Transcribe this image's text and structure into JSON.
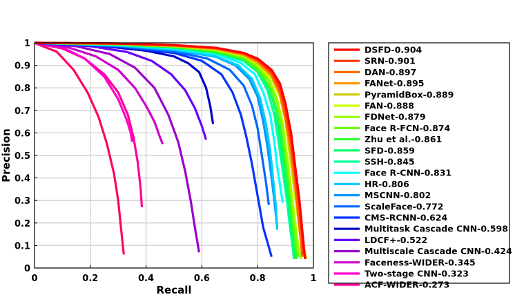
{
  "chart_data": {
    "type": "line",
    "title": "",
    "xlabel": "Recall",
    "ylabel": "Precision",
    "xlim": [
      0,
      1
    ],
    "ylim": [
      0,
      1
    ],
    "grid": true,
    "legend_position": "right",
    "x_ticks": [
      "0",
      "0.2",
      "0.4",
      "0.6",
      "0.8",
      "1"
    ],
    "y_ticks": [
      "0",
      "0.1",
      "0.2",
      "0.3",
      "0.4",
      "0.5",
      "0.6",
      "0.7",
      "0.8",
      "0.9",
      "1"
    ],
    "series": [
      {
        "name": "DSFD-0.904",
        "color": "#ff0000",
        "points": [
          [
            0,
            1
          ],
          [
            0.3,
            0.997
          ],
          [
            0.5,
            0.99
          ],
          [
            0.65,
            0.978
          ],
          [
            0.75,
            0.955
          ],
          [
            0.8,
            0.93
          ],
          [
            0.85,
            0.88
          ],
          [
            0.88,
            0.82
          ],
          [
            0.9,
            0.73
          ],
          [
            0.92,
            0.6
          ],
          [
            0.935,
            0.45
          ],
          [
            0.95,
            0.3
          ],
          [
            0.96,
            0.17
          ],
          [
            0.97,
            0.04
          ]
        ]
      },
      {
        "name": "SRN-0.901",
        "color": "#ff3300",
        "points": [
          [
            0,
            1
          ],
          [
            0.3,
            0.997
          ],
          [
            0.5,
            0.99
          ],
          [
            0.65,
            0.978
          ],
          [
            0.75,
            0.955
          ],
          [
            0.8,
            0.925
          ],
          [
            0.85,
            0.87
          ],
          [
            0.88,
            0.8
          ],
          [
            0.9,
            0.7
          ],
          [
            0.92,
            0.57
          ],
          [
            0.935,
            0.42
          ],
          [
            0.95,
            0.27
          ],
          [
            0.96,
            0.14
          ],
          [
            0.965,
            0.06
          ]
        ]
      },
      {
        "name": "DAN-0.897",
        "color": "#ff6600",
        "points": [
          [
            0,
            1
          ],
          [
            0.3,
            0.996
          ],
          [
            0.5,
            0.988
          ],
          [
            0.65,
            0.975
          ],
          [
            0.75,
            0.95
          ],
          [
            0.8,
            0.92
          ],
          [
            0.85,
            0.86
          ],
          [
            0.88,
            0.78
          ],
          [
            0.9,
            0.67
          ],
          [
            0.92,
            0.53
          ],
          [
            0.935,
            0.38
          ],
          [
            0.945,
            0.25
          ],
          [
            0.955,
            0.12
          ],
          [
            0.96,
            0.05
          ]
        ]
      },
      {
        "name": "FANet-0.895",
        "color": "#ff9900",
        "points": [
          [
            0,
            1
          ],
          [
            0.3,
            0.996
          ],
          [
            0.5,
            0.987
          ],
          [
            0.65,
            0.974
          ],
          [
            0.75,
            0.948
          ],
          [
            0.8,
            0.915
          ],
          [
            0.85,
            0.855
          ],
          [
            0.88,
            0.77
          ],
          [
            0.9,
            0.66
          ],
          [
            0.92,
            0.51
          ],
          [
            0.935,
            0.36
          ],
          [
            0.945,
            0.23
          ],
          [
            0.955,
            0.12
          ],
          [
            0.965,
            0.05
          ]
        ]
      },
      {
        "name": "PyramidBox-0.889",
        "color": "#cccc00",
        "points": [
          [
            0,
            1
          ],
          [
            0.3,
            0.995
          ],
          [
            0.5,
            0.986
          ],
          [
            0.65,
            0.972
          ],
          [
            0.75,
            0.945
          ],
          [
            0.8,
            0.91
          ],
          [
            0.85,
            0.85
          ],
          [
            0.88,
            0.77
          ],
          [
            0.9,
            0.66
          ],
          [
            0.915,
            0.52
          ],
          [
            0.93,
            0.38
          ],
          [
            0.945,
            0.24
          ],
          [
            0.96,
            0.12
          ],
          [
            0.975,
            0.04
          ]
        ]
      },
      {
        "name": "FAN-0.888",
        "color": "#ccff00",
        "points": [
          [
            0,
            1
          ],
          [
            0.3,
            0.995
          ],
          [
            0.5,
            0.986
          ],
          [
            0.65,
            0.97
          ],
          [
            0.75,
            0.943
          ],
          [
            0.8,
            0.905
          ],
          [
            0.85,
            0.84
          ],
          [
            0.88,
            0.76
          ],
          [
            0.9,
            0.65
          ],
          [
            0.915,
            0.5
          ],
          [
            0.93,
            0.36
          ],
          [
            0.945,
            0.22
          ],
          [
            0.955,
            0.12
          ],
          [
            0.965,
            0.05
          ]
        ]
      },
      {
        "name": "FDNet-0.879",
        "color": "#99ff00",
        "points": [
          [
            0,
            1
          ],
          [
            0.3,
            0.995
          ],
          [
            0.5,
            0.985
          ],
          [
            0.65,
            0.968
          ],
          [
            0.75,
            0.94
          ],
          [
            0.8,
            0.9
          ],
          [
            0.84,
            0.84
          ],
          [
            0.87,
            0.75
          ],
          [
            0.89,
            0.64
          ],
          [
            0.905,
            0.5
          ],
          [
            0.92,
            0.35
          ],
          [
            0.935,
            0.2
          ],
          [
            0.945,
            0.1
          ],
          [
            0.955,
            0.04
          ]
        ]
      },
      {
        "name": "Face R-FCN-0.874",
        "color": "#66ff00",
        "points": [
          [
            0,
            1
          ],
          [
            0.3,
            0.994
          ],
          [
            0.5,
            0.984
          ],
          [
            0.65,
            0.965
          ],
          [
            0.75,
            0.935
          ],
          [
            0.8,
            0.89
          ],
          [
            0.84,
            0.83
          ],
          [
            0.87,
            0.74
          ],
          [
            0.89,
            0.62
          ],
          [
            0.905,
            0.48
          ],
          [
            0.92,
            0.33
          ],
          [
            0.93,
            0.2
          ],
          [
            0.94,
            0.1
          ],
          [
            0.945,
            0.05
          ]
        ]
      },
      {
        "name": "Zhu et al.-0.861",
        "color": "#33ff33",
        "points": [
          [
            0,
            1
          ],
          [
            0.3,
            0.993
          ],
          [
            0.5,
            0.982
          ],
          [
            0.65,
            0.96
          ],
          [
            0.75,
            0.928
          ],
          [
            0.8,
            0.88
          ],
          [
            0.84,
            0.81
          ],
          [
            0.865,
            0.72
          ],
          [
            0.885,
            0.6
          ],
          [
            0.9,
            0.46
          ],
          [
            0.915,
            0.32
          ],
          [
            0.925,
            0.2
          ],
          [
            0.935,
            0.1
          ],
          [
            0.94,
            0.04
          ]
        ]
      },
      {
        "name": "SFD-0.859",
        "color": "#00ff66",
        "points": [
          [
            0,
            1
          ],
          [
            0.3,
            0.993
          ],
          [
            0.5,
            0.98
          ],
          [
            0.65,
            0.958
          ],
          [
            0.75,
            0.925
          ],
          [
            0.8,
            0.875
          ],
          [
            0.84,
            0.8
          ],
          [
            0.865,
            0.7
          ],
          [
            0.88,
            0.58
          ],
          [
            0.895,
            0.45
          ],
          [
            0.91,
            0.31
          ],
          [
            0.92,
            0.19
          ],
          [
            0.93,
            0.1
          ],
          [
            0.935,
            0.04
          ]
        ]
      },
      {
        "name": "SSH-0.845",
        "color": "#00ff99",
        "points": [
          [
            0,
            1
          ],
          [
            0.3,
            0.992
          ],
          [
            0.5,
            0.978
          ],
          [
            0.65,
            0.955
          ],
          [
            0.75,
            0.92
          ],
          [
            0.8,
            0.87
          ],
          [
            0.835,
            0.79
          ],
          [
            0.86,
            0.68
          ],
          [
            0.875,
            0.56
          ],
          [
            0.89,
            0.43
          ],
          [
            0.905,
            0.3
          ],
          [
            0.915,
            0.19
          ],
          [
            0.925,
            0.1
          ],
          [
            0.93,
            0.04
          ]
        ]
      },
      {
        "name": "Face R-CNN-0.831",
        "color": "#00ffff",
        "points": [
          [
            0,
            1
          ],
          [
            0.3,
            0.99
          ],
          [
            0.5,
            0.975
          ],
          [
            0.65,
            0.95
          ],
          [
            0.74,
            0.91
          ],
          [
            0.79,
            0.86
          ],
          [
            0.82,
            0.78
          ],
          [
            0.845,
            0.68
          ],
          [
            0.86,
            0.56
          ],
          [
            0.87,
            0.45
          ],
          [
            0.88,
            0.37
          ],
          [
            0.89,
            0.29
          ]
        ]
      },
      {
        "name": "HR-0.806",
        "color": "#00ccff",
        "points": [
          [
            0,
            1
          ],
          [
            0.3,
            0.988
          ],
          [
            0.5,
            0.97
          ],
          [
            0.65,
            0.94
          ],
          [
            0.73,
            0.9
          ],
          [
            0.78,
            0.84
          ],
          [
            0.81,
            0.75
          ],
          [
            0.83,
            0.64
          ],
          [
            0.845,
            0.52
          ],
          [
            0.855,
            0.4
          ],
          [
            0.865,
            0.28
          ],
          [
            0.87,
            0.17
          ]
        ]
      },
      {
        "name": "MSCNN-0.802",
        "color": "#0099ff",
        "points": [
          [
            0,
            1
          ],
          [
            0.3,
            0.987
          ],
          [
            0.5,
            0.968
          ],
          [
            0.65,
            0.938
          ],
          [
            0.72,
            0.9
          ],
          [
            0.77,
            0.84
          ],
          [
            0.8,
            0.76
          ],
          [
            0.82,
            0.65
          ],
          [
            0.835,
            0.54
          ],
          [
            0.848,
            0.42
          ],
          [
            0.86,
            0.3
          ],
          [
            0.87,
            0.18
          ]
        ]
      },
      {
        "name": "ScaleFace-0.772",
        "color": "#0066ff",
        "points": [
          [
            0,
            1
          ],
          [
            0.3,
            0.985
          ],
          [
            0.5,
            0.962
          ],
          [
            0.62,
            0.93
          ],
          [
            0.7,
            0.88
          ],
          [
            0.75,
            0.81
          ],
          [
            0.78,
            0.72
          ],
          [
            0.8,
            0.62
          ],
          [
            0.815,
            0.5
          ],
          [
            0.83,
            0.38
          ],
          [
            0.84,
            0.28
          ]
        ]
      },
      {
        "name": "CMS-RCNN-0.624",
        "color": "#0033ff",
        "points": [
          [
            0,
            1
          ],
          [
            0.3,
            0.983
          ],
          [
            0.5,
            0.955
          ],
          [
            0.6,
            0.92
          ],
          [
            0.67,
            0.86
          ],
          [
            0.71,
            0.78
          ],
          [
            0.74,
            0.68
          ],
          [
            0.76,
            0.58
          ],
          [
            0.78,
            0.46
          ],
          [
            0.8,
            0.32
          ],
          [
            0.82,
            0.18
          ],
          [
            0.85,
            0.05
          ]
        ]
      },
      {
        "name": "Multitask Cascade CNN-0.598",
        "color": "#0000cc",
        "points": [
          [
            0,
            1
          ],
          [
            0.25,
            0.985
          ],
          [
            0.4,
            0.965
          ],
          [
            0.5,
            0.94
          ],
          [
            0.55,
            0.91
          ],
          [
            0.59,
            0.87
          ],
          [
            0.615,
            0.8
          ],
          [
            0.63,
            0.72
          ],
          [
            0.64,
            0.64
          ]
        ]
      },
      {
        "name": "LDCF+-0.522",
        "color": "#6600ff",
        "points": [
          [
            0,
            1
          ],
          [
            0.2,
            0.985
          ],
          [
            0.33,
            0.96
          ],
          [
            0.42,
            0.92
          ],
          [
            0.49,
            0.86
          ],
          [
            0.54,
            0.79
          ],
          [
            0.575,
            0.71
          ],
          [
            0.6,
            0.63
          ],
          [
            0.615,
            0.57
          ]
        ]
      },
      {
        "name": "Multiscale Cascade CNN-0.424",
        "color": "#9900cc",
        "points": [
          [
            0,
            1
          ],
          [
            0.15,
            0.985
          ],
          [
            0.27,
            0.95
          ],
          [
            0.36,
            0.89
          ],
          [
            0.43,
            0.8
          ],
          [
            0.48,
            0.68
          ],
          [
            0.515,
            0.56
          ],
          [
            0.54,
            0.43
          ],
          [
            0.56,
            0.3
          ],
          [
            0.575,
            0.18
          ],
          [
            0.59,
            0.07
          ]
        ]
      },
      {
        "name": "Faceness-WIDER-0.345",
        "color": "#cc00cc",
        "points": [
          [
            0,
            1
          ],
          [
            0.12,
            0.98
          ],
          [
            0.22,
            0.94
          ],
          [
            0.3,
            0.88
          ],
          [
            0.36,
            0.8
          ],
          [
            0.4,
            0.72
          ],
          [
            0.43,
            0.65
          ],
          [
            0.45,
            0.58
          ],
          [
            0.46,
            0.55
          ]
        ]
      },
      {
        "name": "Two-stage CNN-0.323",
        "color": "#ff00cc",
        "points": [
          [
            0,
            1
          ],
          [
            0.1,
            0.98
          ],
          [
            0.18,
            0.93
          ],
          [
            0.25,
            0.85
          ],
          [
            0.3,
            0.75
          ],
          [
            0.33,
            0.66
          ],
          [
            0.345,
            0.6
          ],
          [
            0.35,
            0.56
          ]
        ]
      },
      {
        "name": "ACF-WIDER-0.273",
        "color": "#ff0099",
        "points": [
          [
            0,
            1
          ],
          [
            0.1,
            0.975
          ],
          [
            0.18,
            0.93
          ],
          [
            0.25,
            0.86
          ],
          [
            0.3,
            0.78
          ],
          [
            0.335,
            0.68
          ],
          [
            0.355,
            0.58
          ],
          [
            0.37,
            0.47
          ],
          [
            0.38,
            0.36
          ],
          [
            0.385,
            0.27
          ]
        ]
      },
      {
        "name": "",
        "color": "#ff0066",
        "points": [
          [
            0,
            1
          ],
          [
            0.08,
            0.96
          ],
          [
            0.14,
            0.88
          ],
          [
            0.19,
            0.78
          ],
          [
            0.23,
            0.67
          ],
          [
            0.26,
            0.55
          ],
          [
            0.285,
            0.42
          ],
          [
            0.3,
            0.3
          ],
          [
            0.31,
            0.18
          ],
          [
            0.32,
            0.06
          ]
        ]
      }
    ]
  }
}
